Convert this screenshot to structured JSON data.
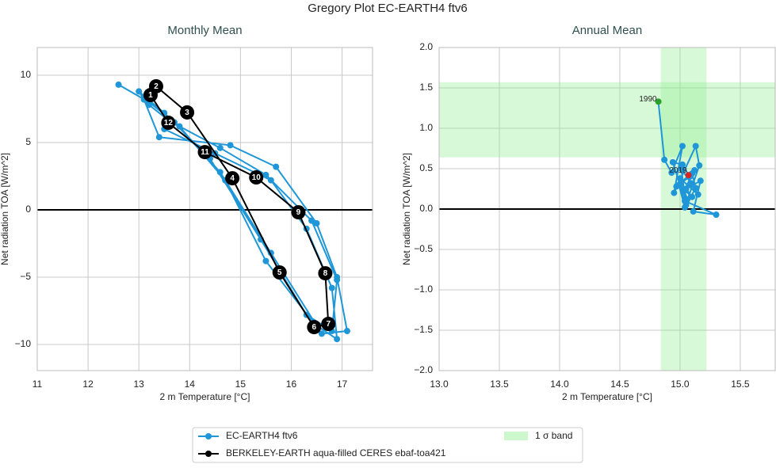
{
  "title": "Gregory Plot EC-EARTH4 ftv6",
  "chart_data": [
    {
      "type": "line",
      "title": "Monthly Mean",
      "xlabel": "2 m Temperature [°C]",
      "ylabel": "Net radiation TOA [W/m^2]",
      "xlim": [
        11,
        17.6
      ],
      "ylim": [
        -11.94,
        12.06
      ],
      "xticks": [
        11,
        12,
        13,
        14,
        15,
        16,
        17
      ],
      "yticks": [
        {
          "value": -10,
          "label": "−10"
        },
        {
          "value": -5,
          "label": "−5"
        },
        0,
        5,
        10
      ],
      "grid": true,
      "hline": 0,
      "series": [
        {
          "name": "EC-EARTH4 ftv6",
          "color": "#1e96d8",
          "x": [
            12.6,
            13.2,
            13.8,
            14.7,
            15.5,
            16.6,
            17.1,
            16.9,
            16.5,
            15.7,
            14.8,
            13.4,
            13.1,
            13.0,
            13.5,
            14.4,
            15.4,
            16.3,
            16.8,
            16.9,
            16.4,
            15.5,
            14.6,
            13.6,
            13.2,
            13.1,
            13.7,
            14.6,
            15.6,
            16.5,
            16.9,
            16.8,
            16.3,
            15.6,
            14.5,
            13.5
          ],
          "values": [
            9.3,
            8.0,
            6.2,
            2.2,
            -3.8,
            -9.2,
            -9.0,
            -5.0,
            -1.0,
            3.2,
            4.8,
            5.4,
            8.2,
            8.8,
            7.2,
            3.8,
            -2.2,
            -7.8,
            -9.0,
            -5.2,
            -0.8,
            2.6,
            4.6,
            6.6,
            7.8,
            8.3,
            6.5,
            2.8,
            -3.2,
            -8.6,
            -9.6,
            -5.8,
            -1.4,
            2.2,
            4.2,
            6.0
          ]
        },
        {
          "name": "BERKELEY-EARTH aqua-filled CERES ebaf-toa421",
          "color": "#000000",
          "closed": true,
          "x": [
            13.23,
            13.34,
            13.95,
            14.84,
            15.77,
            16.45,
            16.73,
            16.67,
            16.14,
            15.31,
            14.3,
            13.58
          ],
          "values": [
            8.53,
            9.18,
            7.24,
            2.35,
            -4.65,
            -8.71,
            -8.47,
            -4.71,
            -0.18,
            2.41,
            4.29,
            6.47
          ],
          "point_labels": [
            "1",
            "2",
            "3",
            "4",
            "5",
            "6",
            "7",
            "8",
            "9",
            "10",
            "11",
            "12"
          ]
        }
      ]
    },
    {
      "type": "line",
      "title": "Annual Mean",
      "xlabel": "2 m Temperature [°C]",
      "ylabel": "Net radiation TOA [W/m^2]",
      "xlim": [
        13.0,
        15.79
      ],
      "ylim": [
        -2.0,
        2.0
      ],
      "xticks": [
        {
          "value": 13.0,
          "label": "13.0"
        },
        13.5,
        {
          "value": 14.0,
          "label": "14.0"
        },
        14.5,
        {
          "value": 15.0,
          "label": "15.0"
        },
        15.5
      ],
      "yticks": [
        {
          "value": -2.0,
          "label": "−2.0"
        },
        {
          "value": -1.5,
          "label": "−1.5"
        },
        {
          "value": -1.0,
          "label": "−1.0"
        },
        {
          "value": -0.5,
          "label": "−0.5"
        },
        {
          "value": 0.0,
          "label": "0.0"
        },
        0.5,
        {
          "value": 1.0,
          "label": "1.0"
        },
        1.5,
        {
          "value": 2.0,
          "label": "2.0"
        }
      ],
      "grid": true,
      "hline": 0,
      "band": {
        "name": "1 σ band",
        "color": "#90ee90",
        "x": [
          14.84,
          15.22
        ],
        "y": [
          0.64,
          1.57
        ]
      },
      "series": [
        {
          "name": "EC-EARTH4 ftv6",
          "color": "#1e96d8",
          "start_color": "#2ca02c",
          "end_color": "#d62728",
          "annotations": [
            "1990",
            "2019"
          ],
          "x": [
            14.82,
            14.87,
            14.93,
            15.02,
            14.95,
            15.13,
            15.16,
            15.04,
            14.99,
            15.1,
            15.05,
            15.17,
            15.11,
            15.3,
            15.04,
            14.94,
            15.02,
            15.08,
            14.97,
            15.12,
            15.03,
            15.06,
            15.0,
            15.15,
            15.09,
            15.01,
            15.05,
            15.13,
            15.1,
            15.07
          ],
          "values": [
            1.33,
            0.61,
            0.45,
            0.78,
            0.2,
            0.78,
            0.54,
            0.02,
            0.3,
            0.15,
            0.25,
            0.35,
            -0.03,
            -0.07,
            0.1,
            0.58,
            0.55,
            0.4,
            0.28,
            0.48,
            0.22,
            0.12,
            0.38,
            0.18,
            0.32,
            0.5,
            0.05,
            0.26,
            0.44,
            0.42
          ]
        }
      ]
    }
  ]
}
